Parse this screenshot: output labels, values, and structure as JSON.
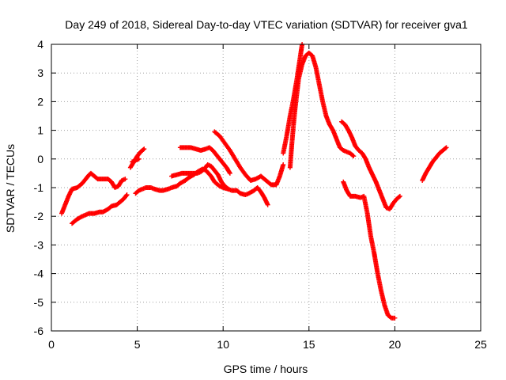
{
  "chart_data": {
    "type": "scatter",
    "title": "Day 249 of 2018, Sidereal Day-to-day VTEC variation (SDTVAR) for receiver gva1",
    "xlabel": "GPS time / hours",
    "ylabel": "SDTVAR / TECUs",
    "xlim": [
      0,
      25
    ],
    "ylim": [
      -6,
      4
    ],
    "xticks": [
      "0",
      "5",
      "10",
      "15",
      "20",
      "25"
    ],
    "yticks": [
      "-6",
      "-5",
      "-4",
      "-3",
      "-2",
      "-1",
      "0",
      "1",
      "2",
      "3",
      "4"
    ],
    "grid": true,
    "legend": "none",
    "marker": "plus",
    "color": "#ff0000",
    "series": [
      {
        "x": [
          0.6,
          0.8,
          1.0,
          1.2,
          1.5,
          1.8,
          2.0,
          2.2,
          2.3,
          2.5,
          2.7,
          3.0,
          3.3,
          3.5,
          3.7,
          3.9,
          4.1,
          4.3
        ],
        "y": [
          -1.9,
          -1.6,
          -1.3,
          -1.05,
          -1.0,
          -0.85,
          -0.7,
          -0.55,
          -0.5,
          -0.6,
          -0.7,
          -0.7,
          -0.7,
          -0.8,
          -1.0,
          -0.95,
          -0.75,
          -0.7
        ]
      },
      {
        "x": [
          1.2,
          1.5,
          1.8,
          2.0,
          2.2,
          2.5,
          2.8,
          3.0,
          3.3,
          3.5,
          3.8,
          4.0,
          4.2,
          4.4
        ],
        "y": [
          -2.25,
          -2.1,
          -2.0,
          -1.95,
          -1.9,
          -1.9,
          -1.85,
          -1.85,
          -1.75,
          -1.65,
          -1.6,
          -1.5,
          -1.4,
          -1.25
        ]
      },
      {
        "x": [
          4.6,
          4.8,
          5.0,
          5.2,
          5.4
        ],
        "y": [
          -0.3,
          -0.1,
          0.1,
          0.25,
          0.35
        ]
      },
      {
        "x": [
          4.7,
          4.9,
          5.1
        ],
        "y": [
          -0.1,
          -0.05,
          0.0
        ]
      },
      {
        "x": [
          4.9,
          5.1,
          5.3,
          5.5,
          5.8,
          6.0,
          6.3,
          6.5,
          6.8,
          7.0,
          7.3,
          7.5,
          7.8,
          8.0,
          8.3,
          8.5,
          8.8,
          9.0,
          9.3,
          9.5,
          9.8,
          10.0,
          10.3,
          10.5,
          10.8,
          11.0,
          11.3,
          11.5,
          11.8,
          12.0,
          12.2,
          12.4,
          12.6
        ],
        "y": [
          -1.2,
          -1.1,
          -1.05,
          -1.0,
          -1.0,
          -1.05,
          -1.1,
          -1.1,
          -1.05,
          -1.0,
          -0.95,
          -0.85,
          -0.75,
          -0.65,
          -0.55,
          -0.45,
          -0.35,
          -0.4,
          -0.6,
          -0.8,
          -0.95,
          -1.0,
          -1.05,
          -1.1,
          -1.1,
          -1.2,
          -1.25,
          -1.2,
          -1.1,
          -1.0,
          -1.15,
          -1.35,
          -1.6
        ]
      },
      {
        "x": [
          7.0,
          7.3,
          7.6,
          7.9,
          8.2,
          8.5,
          8.7,
          8.9,
          9.1,
          9.3,
          9.5,
          9.7,
          9.9,
          10.1,
          10.3
        ],
        "y": [
          -0.6,
          -0.55,
          -0.5,
          -0.5,
          -0.5,
          -0.5,
          -0.45,
          -0.35,
          -0.2,
          -0.25,
          -0.4,
          -0.55,
          -0.8,
          -0.95,
          -1.05
        ]
      },
      {
        "x": [
          7.5,
          7.8,
          8.1,
          8.4,
          8.7,
          9.0,
          9.2,
          9.4,
          9.6,
          9.8,
          10.0,
          10.2,
          10.4
        ],
        "y": [
          0.4,
          0.4,
          0.4,
          0.35,
          0.3,
          0.35,
          0.4,
          0.3,
          0.15,
          0.0,
          -0.15,
          -0.3,
          -0.5
        ]
      },
      {
        "x": [
          9.5,
          9.8,
          10.1,
          10.4,
          10.7,
          11.0,
          11.3,
          11.6,
          11.9,
          12.2,
          12.5,
          12.8,
          13.1,
          13.3,
          13.5
        ],
        "y": [
          0.95,
          0.8,
          0.55,
          0.3,
          0.0,
          -0.3,
          -0.55,
          -0.75,
          -0.7,
          -0.6,
          -0.75,
          -0.9,
          -0.9,
          -0.6,
          -0.2
        ]
      },
      {
        "x": [
          13.5,
          13.7,
          13.9,
          14.1,
          14.3,
          14.5,
          14.6
        ],
        "y": [
          0.2,
          0.8,
          1.5,
          2.1,
          2.8,
          3.6,
          4.0
        ]
      },
      {
        "x": [
          13.9,
          14.0,
          14.1,
          14.2,
          14.3,
          14.4,
          14.6,
          14.8,
          15.0,
          15.2,
          15.4,
          15.6,
          15.8,
          16.0,
          16.2,
          16.4,
          16.6,
          16.8,
          17.0,
          17.2,
          17.4,
          17.6
        ],
        "y": [
          -0.3,
          0.5,
          1.2,
          1.8,
          2.3,
          2.8,
          3.3,
          3.6,
          3.7,
          3.6,
          3.2,
          2.6,
          2.0,
          1.5,
          1.2,
          1.0,
          0.7,
          0.4,
          0.3,
          0.25,
          0.2,
          0.1
        ]
      },
      {
        "x": [
          16.9,
          17.1,
          17.3,
          17.5,
          17.7,
          17.9,
          18.1,
          18.3,
          18.5,
          18.7,
          18.9,
          19.1,
          19.3,
          19.5,
          19.7,
          19.9,
          20.1,
          20.3
        ],
        "y": [
          1.3,
          1.2,
          1.0,
          0.75,
          0.45,
          0.3,
          0.2,
          0.0,
          -0.3,
          -0.55,
          -0.8,
          -1.1,
          -1.4,
          -1.7,
          -1.75,
          -1.55,
          -1.4,
          -1.3
        ]
      },
      {
        "x": [
          17.0,
          17.2,
          17.4,
          17.7,
          18.0,
          18.2,
          18.4,
          18.6,
          18.8,
          19.0,
          19.2,
          19.4,
          19.6,
          19.8,
          20.0
        ],
        "y": [
          -0.8,
          -1.1,
          -1.3,
          -1.3,
          -1.35,
          -1.3,
          -1.9,
          -2.7,
          -3.3,
          -4.0,
          -4.6,
          -5.1,
          -5.45,
          -5.55,
          -5.55
        ]
      },
      {
        "x": [
          21.6,
          21.8,
          22.0,
          22.2,
          22.4,
          22.6,
          22.8,
          23.0
        ],
        "y": [
          -0.75,
          -0.5,
          -0.3,
          -0.1,
          0.05,
          0.2,
          0.3,
          0.4
        ]
      }
    ]
  }
}
